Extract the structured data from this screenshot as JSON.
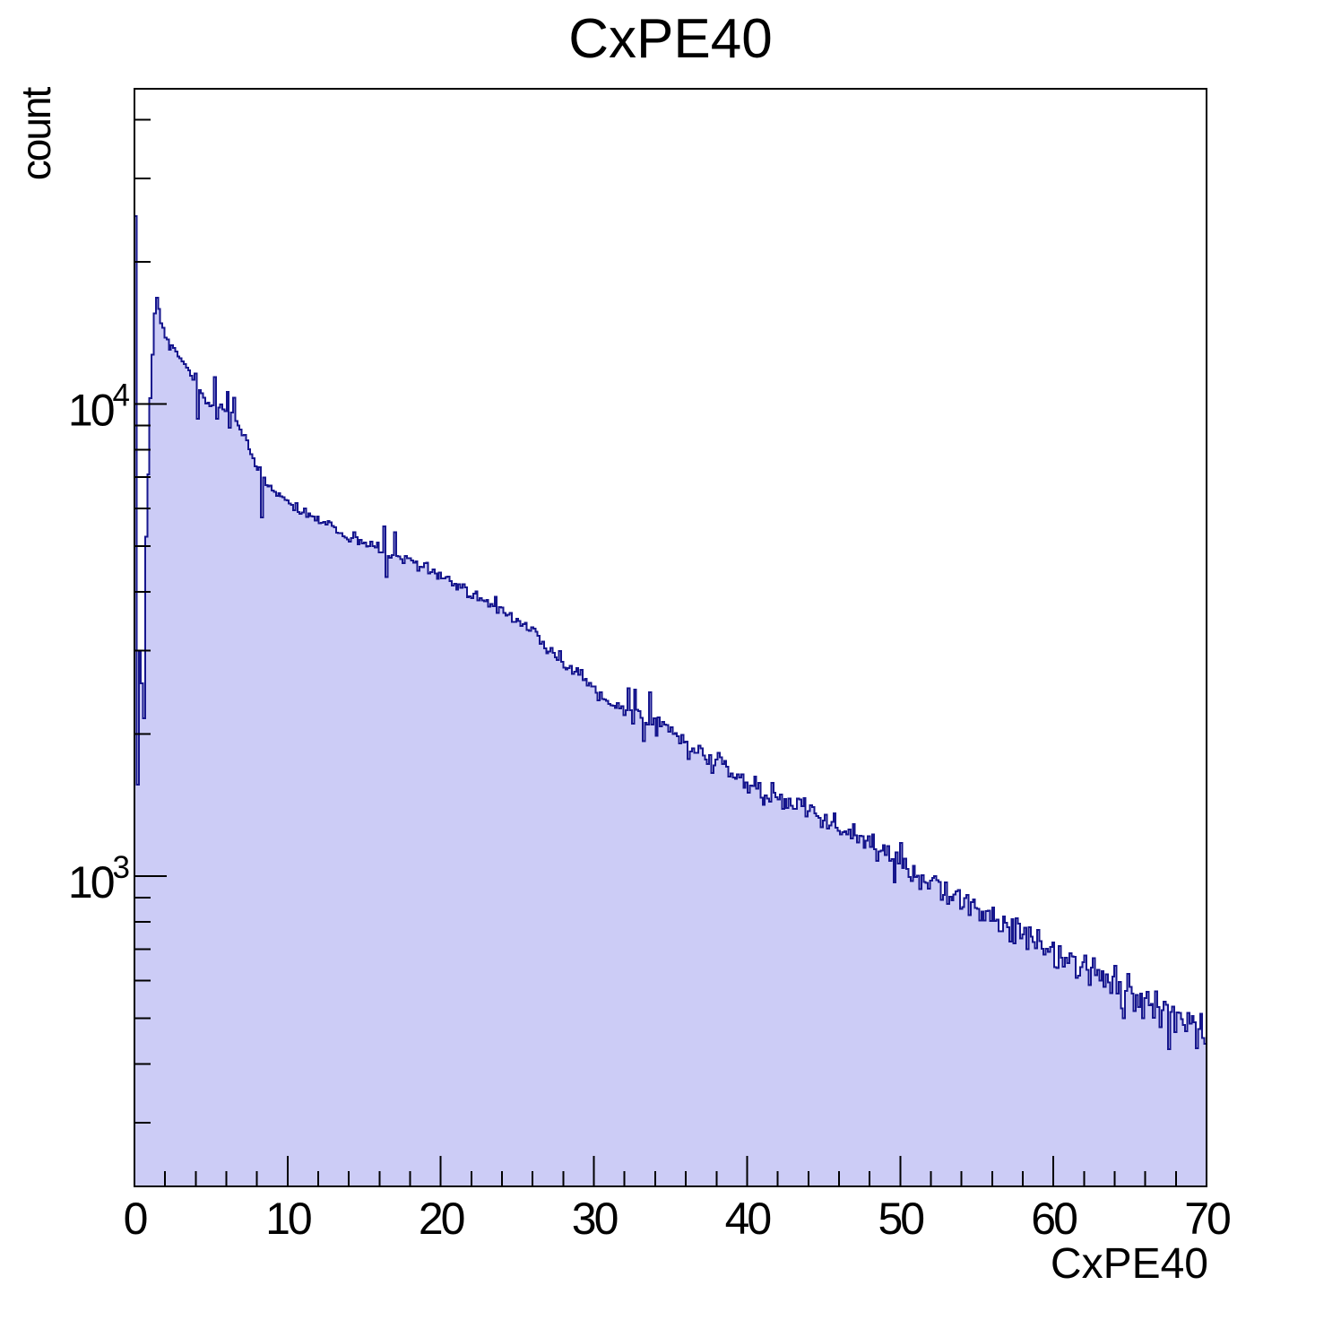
{
  "title": "CxPE40",
  "axes": {
    "x": {
      "label": "CxPE40",
      "min": 0,
      "max": 70,
      "major_ticks": [
        0,
        10,
        20,
        30,
        40,
        50,
        60,
        70
      ],
      "minor_tick_step": 2
    },
    "y": {
      "label": "count",
      "scale": "log",
      "min": 220,
      "max": 46500,
      "labeled_ticks": [
        {
          "value": 1000,
          "base": "10",
          "exponent": "3"
        },
        {
          "value": 10000,
          "base": "10",
          "exponent": "4"
        }
      ]
    }
  },
  "colors": {
    "histogram_fill": "#ccccf6",
    "histogram_line": "#16168e",
    "frame": "#000000",
    "text": "#000000",
    "background": "#ffffff"
  },
  "chart_data": {
    "type": "bar",
    "subtype": "filled-step-histogram",
    "title": "CxPE40",
    "xlabel": "CxPE40",
    "ylabel": "count",
    "xlim": [
      0,
      70
    ],
    "ylim": [
      220,
      46500
    ],
    "log_y": true,
    "grid": false,
    "legend": false,
    "n_bins": 500,
    "envelope_points": [
      [
        0.07,
        25000
      ],
      [
        0.21,
        1560
      ],
      [
        0.35,
        2990
      ],
      [
        0.49,
        2560
      ],
      [
        0.63,
        2160
      ],
      [
        0.77,
        5300
      ],
      [
        0.91,
        7200
      ],
      [
        1.05,
        10200
      ],
      [
        1.19,
        12600
      ],
      [
        1.33,
        15600
      ],
      [
        1.47,
        16600
      ],
      [
        1.61,
        15900
      ],
      [
        1.75,
        14800
      ],
      [
        2.0,
        13900
      ],
      [
        2.3,
        13300
      ],
      [
        2.6,
        13100
      ],
      [
        3.0,
        12600
      ],
      [
        3.5,
        11800
      ],
      [
        4.0,
        11100
      ],
      [
        4.5,
        10400
      ],
      [
        5.0,
        9900
      ],
      [
        5.5,
        9900
      ],
      [
        6.0,
        9600
      ],
      [
        6.5,
        9500
      ],
      [
        7.0,
        8700
      ],
      [
        7.5,
        8000
      ],
      [
        8.0,
        7200
      ],
      [
        8.5,
        6900
      ],
      [
        9.0,
        6650
      ],
      [
        10,
        6150
      ],
      [
        11,
        5900
      ],
      [
        12,
        5700
      ],
      [
        13,
        5450
      ],
      [
        14,
        5250
      ],
      [
        15,
        5100
      ],
      [
        16,
        4950
      ],
      [
        17,
        4820
      ],
      [
        18,
        4650
      ],
      [
        19,
        4480
      ],
      [
        20,
        4320
      ],
      [
        21,
        4120
      ],
      [
        22,
        3970
      ],
      [
        23,
        3850
      ],
      [
        24,
        3650
      ],
      [
        25,
        3500
      ],
      [
        26,
        3350
      ],
      [
        27,
        2980
      ],
      [
        28,
        2820
      ],
      [
        29,
        2700
      ],
      [
        30,
        2480
      ],
      [
        31,
        2330
      ],
      [
        32,
        2260
      ],
      [
        33,
        2150
      ],
      [
        34,
        2090
      ],
      [
        35,
        2040
      ],
      [
        36,
        1870
      ],
      [
        37,
        1810
      ],
      [
        38,
        1760
      ],
      [
        39,
        1650
      ],
      [
        40,
        1580
      ],
      [
        41,
        1510
      ],
      [
        42,
        1460
      ],
      [
        43,
        1410
      ],
      [
        44,
        1380
      ],
      [
        45,
        1310
      ],
      [
        46,
        1260
      ],
      [
        47,
        1230
      ],
      [
        48,
        1170
      ],
      [
        49,
        1120
      ],
      [
        50,
        1080
      ],
      [
        51,
        1010
      ],
      [
        52,
        960
      ],
      [
        53,
        925
      ],
      [
        54,
        890
      ],
      [
        55,
        860
      ],
      [
        56,
        825
      ],
      [
        57,
        790
      ],
      [
        58,
        760
      ],
      [
        59,
        730
      ],
      [
        60,
        700
      ],
      [
        61,
        655
      ],
      [
        62,
        630
      ],
      [
        63,
        610
      ],
      [
        64,
        590
      ],
      [
        65,
        570
      ],
      [
        66,
        548
      ],
      [
        67,
        525
      ],
      [
        68,
        500
      ],
      [
        69,
        482
      ],
      [
        70,
        465
      ]
    ],
    "outlier_bins": [
      [
        0.07,
        25000
      ],
      [
        0.21,
        1560
      ],
      [
        0.35,
        2990
      ],
      [
        0.49,
        2560
      ],
      [
        0.63,
        2160
      ],
      [
        4.06,
        11600
      ],
      [
        4.2,
        9300
      ],
      [
        5.25,
        11400
      ],
      [
        5.39,
        9300
      ],
      [
        6.09,
        10600
      ],
      [
        6.23,
        8900
      ],
      [
        6.51,
        10300
      ],
      [
        8.19,
        7350
      ],
      [
        8.33,
        5750
      ],
      [
        16.31,
        5500
      ],
      [
        16.45,
        4300
      ],
      [
        17.01,
        5350
      ],
      [
        32.27,
        2500
      ],
      [
        32.69,
        2480
      ],
      [
        33.25,
        1930
      ],
      [
        33.67,
        2450
      ],
      [
        34.09,
        1980
      ],
      [
        49.63,
        970
      ],
      [
        64.05,
        645
      ],
      [
        64.61,
        500
      ],
      [
        67.55,
        430
      ]
    ],
    "noise": {
      "seed": 20240601,
      "rel_sigma_coeff": 1.1
    },
    "description": "Falling spectrum: single-bin spike ~25000 at x~0, dip, main peak ~16600 at x~1.5, quasi-exponential decay with Poisson-like jitter down to ~465 at x=70."
  }
}
